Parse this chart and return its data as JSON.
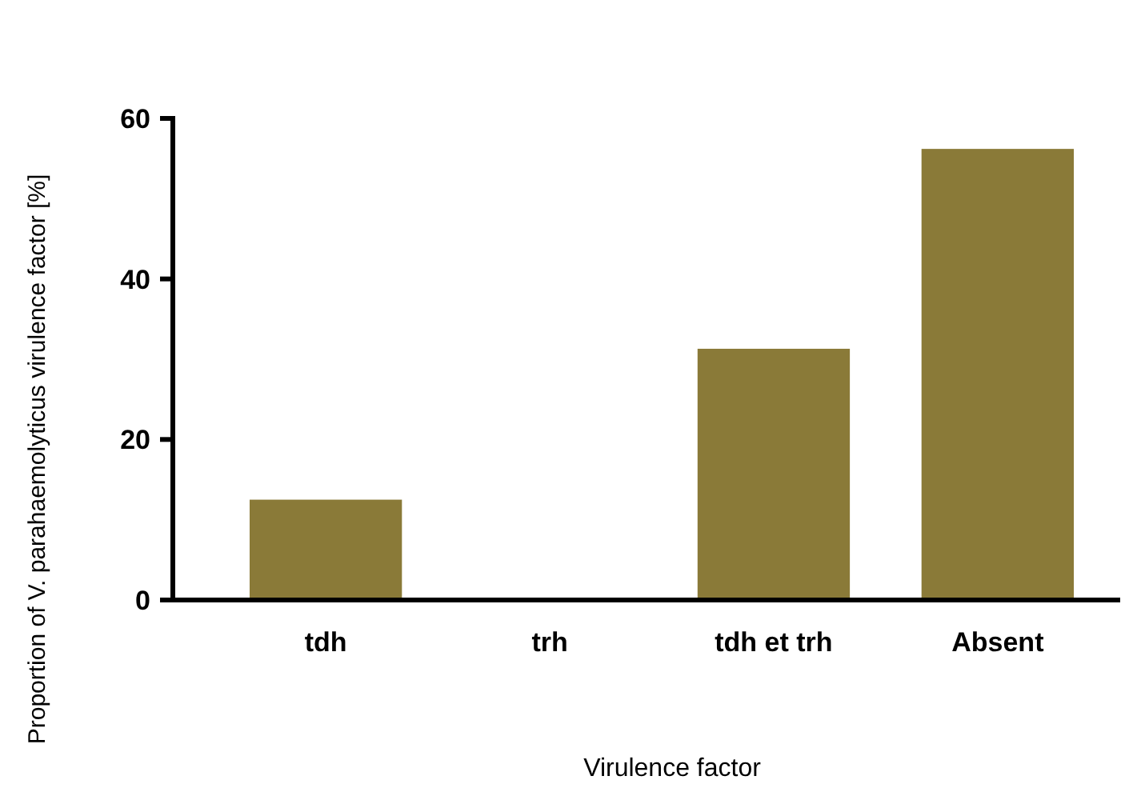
{
  "chart_data": {
    "type": "bar",
    "xlabel": "Virulence factor",
    "ylabel": "Proportion of V. parahaemolyticus virulence factor [%]",
    "categories": [
      "tdh",
      "trh",
      "tdh et trh",
      "Absent"
    ],
    "values": [
      12.5,
      0,
      31.3,
      56.2
    ],
    "color": "#8a7a38",
    "ylim": [
      0,
      60
    ],
    "yticks": [
      0,
      20,
      40,
      60
    ]
  }
}
